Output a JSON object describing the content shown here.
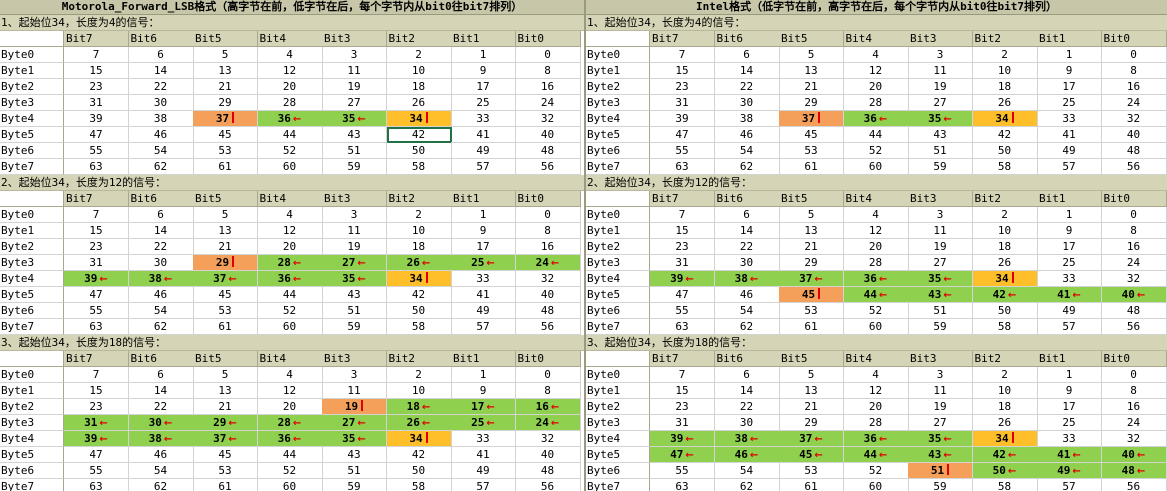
{
  "headers": [
    "Bit7",
    "Bit6",
    "Bit5",
    "Bit4",
    "Bit3",
    "Bit2",
    "Bit1",
    "Bit0"
  ],
  "row_labels": [
    "Byte0",
    "Byte1",
    "Byte2",
    "Byte3",
    "Byte4",
    "Byte5",
    "Byte6",
    "Byte7"
  ],
  "colors": {
    "green": "#8fd14f",
    "orange": "#f5a05a",
    "yellow": "#ffbf2a",
    "arrow": "#e00000",
    "header_bg": "#d6d4b6"
  },
  "panels": [
    {
      "title": "Motorola_Forward_LSB格式（高字节在前，低字节在后，每个字节内从bit0往bit7排列）",
      "sections": [
        {
          "caption": "1、起始位34，长度为4的信号：",
          "bytes_shown": 8,
          "cells": [
            {
              "byte": 4,
              "bit": 5,
              "color": "orange",
              "mark": "bar"
            },
            {
              "byte": 4,
              "bit": 4,
              "color": "green",
              "mark": "arrow"
            },
            {
              "byte": 4,
              "bit": 3,
              "color": "green",
              "mark": "arrow"
            },
            {
              "byte": 4,
              "bit": 2,
              "color": "yellow",
              "mark": "bar"
            }
          ],
          "selected": {
            "byte": 5,
            "bit": 2
          }
        },
        {
          "caption": "2、起始位34，长度为12的信号：",
          "bytes_shown": 8,
          "cells": [
            {
              "byte": 3,
              "bit": 5,
              "color": "orange",
              "mark": "bar"
            },
            {
              "byte": 3,
              "bit": 4,
              "color": "green",
              "mark": "arrow"
            },
            {
              "byte": 3,
              "bit": 3,
              "color": "green",
              "mark": "arrow"
            },
            {
              "byte": 3,
              "bit": 2,
              "color": "green",
              "mark": "arrow"
            },
            {
              "byte": 3,
              "bit": 1,
              "color": "green",
              "mark": "arrow"
            },
            {
              "byte": 3,
              "bit": 0,
              "color": "green",
              "mark": "arrow"
            },
            {
              "byte": 4,
              "bit": 7,
              "color": "green",
              "mark": "arrow"
            },
            {
              "byte": 4,
              "bit": 6,
              "color": "green",
              "mark": "arrow"
            },
            {
              "byte": 4,
              "bit": 5,
              "color": "green",
              "mark": "arrow"
            },
            {
              "byte": 4,
              "bit": 4,
              "color": "green",
              "mark": "arrow"
            },
            {
              "byte": 4,
              "bit": 3,
              "color": "green",
              "mark": "arrow"
            },
            {
              "byte": 4,
              "bit": 2,
              "color": "yellow",
              "mark": "bar"
            }
          ]
        },
        {
          "caption": "3、起始位34，长度为18的信号：",
          "bytes_shown": 8,
          "cells": [
            {
              "byte": 2,
              "bit": 3,
              "color": "orange",
              "mark": "bar"
            },
            {
              "byte": 2,
              "bit": 2,
              "color": "green",
              "mark": "arrow"
            },
            {
              "byte": 2,
              "bit": 1,
              "color": "green",
              "mark": "arrow"
            },
            {
              "byte": 2,
              "bit": 0,
              "color": "green",
              "mark": "arrow"
            },
            {
              "byte": 3,
              "bit": 7,
              "color": "green",
              "mark": "arrow"
            },
            {
              "byte": 3,
              "bit": 6,
              "color": "green",
              "mark": "arrow"
            },
            {
              "byte": 3,
              "bit": 5,
              "color": "green",
              "mark": "arrow"
            },
            {
              "byte": 3,
              "bit": 4,
              "color": "green",
              "mark": "arrow"
            },
            {
              "byte": 3,
              "bit": 3,
              "color": "green",
              "mark": "arrow"
            },
            {
              "byte": 3,
              "bit": 2,
              "color": "green",
              "mark": "arrow"
            },
            {
              "byte": 3,
              "bit": 1,
              "color": "green",
              "mark": "arrow"
            },
            {
              "byte": 3,
              "bit": 0,
              "color": "green",
              "mark": "arrow"
            },
            {
              "byte": 4,
              "bit": 7,
              "color": "green",
              "mark": "arrow"
            },
            {
              "byte": 4,
              "bit": 6,
              "color": "green",
              "mark": "arrow"
            },
            {
              "byte": 4,
              "bit": 5,
              "color": "green",
              "mark": "arrow"
            },
            {
              "byte": 4,
              "bit": 4,
              "color": "green",
              "mark": "arrow"
            },
            {
              "byte": 4,
              "bit": 3,
              "color": "green",
              "mark": "arrow"
            },
            {
              "byte": 4,
              "bit": 2,
              "color": "yellow",
              "mark": "bar"
            }
          ]
        }
      ]
    },
    {
      "title": "Intel格式（低字节在前，高字节在后，每个字节内从bit0往bit7排列）",
      "sections": [
        {
          "caption": "1、起始位34，长度为4的信号：",
          "bytes_shown": 8,
          "cells": [
            {
              "byte": 4,
              "bit": 5,
              "color": "orange",
              "mark": "bar"
            },
            {
              "byte": 4,
              "bit": 4,
              "color": "green",
              "mark": "arrow"
            },
            {
              "byte": 4,
              "bit": 3,
              "color": "green",
              "mark": "arrow"
            },
            {
              "byte": 4,
              "bit": 2,
              "color": "yellow",
              "mark": "bar"
            }
          ]
        },
        {
          "caption": "2、起始位34，长度为12的信号：",
          "bytes_shown": 8,
          "cells": [
            {
              "byte": 4,
              "bit": 7,
              "color": "green",
              "mark": "arrow"
            },
            {
              "byte": 4,
              "bit": 6,
              "color": "green",
              "mark": "arrow"
            },
            {
              "byte": 4,
              "bit": 5,
              "color": "green",
              "mark": "arrow"
            },
            {
              "byte": 4,
              "bit": 4,
              "color": "green",
              "mark": "arrow"
            },
            {
              "byte": 4,
              "bit": 3,
              "color": "green",
              "mark": "arrow"
            },
            {
              "byte": 4,
              "bit": 2,
              "color": "yellow",
              "mark": "bar"
            },
            {
              "byte": 5,
              "bit": 5,
              "color": "orange",
              "mark": "bar"
            },
            {
              "byte": 5,
              "bit": 4,
              "color": "green",
              "mark": "arrow"
            },
            {
              "byte": 5,
              "bit": 3,
              "color": "green",
              "mark": "arrow"
            },
            {
              "byte": 5,
              "bit": 2,
              "color": "green",
              "mark": "arrow"
            },
            {
              "byte": 5,
              "bit": 1,
              "color": "green",
              "mark": "arrow"
            },
            {
              "byte": 5,
              "bit": 0,
              "color": "green",
              "mark": "arrow"
            }
          ]
        },
        {
          "caption": "3、起始位34，长度为18的信号：",
          "bytes_shown": 8,
          "cells": [
            {
              "byte": 4,
              "bit": 7,
              "color": "green",
              "mark": "arrow"
            },
            {
              "byte": 4,
              "bit": 6,
              "color": "green",
              "mark": "arrow"
            },
            {
              "byte": 4,
              "bit": 5,
              "color": "green",
              "mark": "arrow"
            },
            {
              "byte": 4,
              "bit": 4,
              "color": "green",
              "mark": "arrow"
            },
            {
              "byte": 4,
              "bit": 3,
              "color": "green",
              "mark": "arrow"
            },
            {
              "byte": 4,
              "bit": 2,
              "color": "yellow",
              "mark": "bar"
            },
            {
              "byte": 5,
              "bit": 7,
              "color": "green",
              "mark": "arrow"
            },
            {
              "byte": 5,
              "bit": 6,
              "color": "green",
              "mark": "arrow"
            },
            {
              "byte": 5,
              "bit": 5,
              "color": "green",
              "mark": "arrow"
            },
            {
              "byte": 5,
              "bit": 4,
              "color": "green",
              "mark": "arrow"
            },
            {
              "byte": 5,
              "bit": 3,
              "color": "green",
              "mark": "arrow"
            },
            {
              "byte": 5,
              "bit": 2,
              "color": "green",
              "mark": "arrow"
            },
            {
              "byte": 5,
              "bit": 1,
              "color": "green",
              "mark": "arrow"
            },
            {
              "byte": 5,
              "bit": 0,
              "color": "green",
              "mark": "arrow"
            },
            {
              "byte": 6,
              "bit": 3,
              "color": "orange",
              "mark": "bar"
            },
            {
              "byte": 6,
              "bit": 2,
              "color": "green",
              "mark": "arrow"
            },
            {
              "byte": 6,
              "bit": 1,
              "color": "green",
              "mark": "arrow"
            },
            {
              "byte": 6,
              "bit": 0,
              "color": "green",
              "mark": "arrow"
            }
          ]
        }
      ]
    }
  ]
}
